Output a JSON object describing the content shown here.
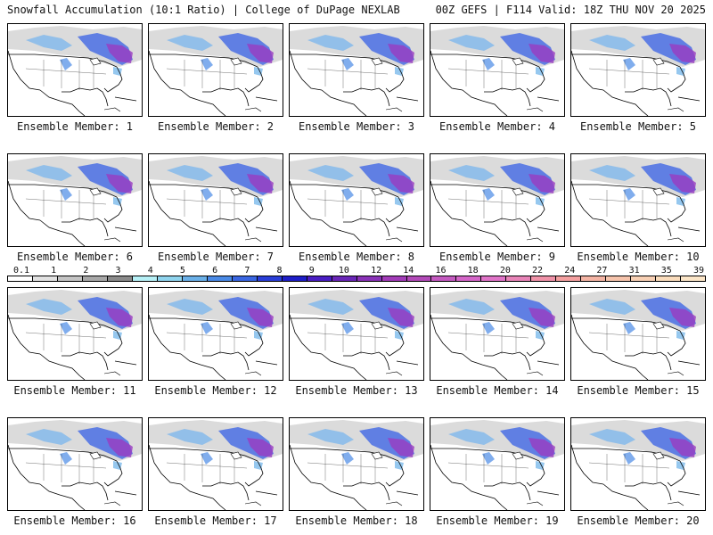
{
  "header": {
    "left": "Snowfall Accumulation (10:1 Ratio) | College of DuPage NEXLAB",
    "right": "00Z GEFS | F114 Valid: 18Z THU NOV 20 2025"
  },
  "caption_prefix": "Ensemble Member:",
  "members": [
    "1",
    "2",
    "3",
    "4",
    "5",
    "6",
    "7",
    "8",
    "9",
    "10",
    "11",
    "12",
    "13",
    "14",
    "15",
    "16",
    "17",
    "18",
    "19",
    "20"
  ],
  "colorbar": {
    "labels": [
      "0.1",
      "1",
      "2",
      "3",
      "4",
      "5",
      "6",
      "7",
      "8",
      "9",
      "10",
      "12",
      "14",
      "16",
      "18",
      "20",
      "22",
      "24",
      "27",
      "31",
      "35",
      "39"
    ],
    "colors": [
      "#ffffff",
      "#e2e2e2",
      "#c4c4c4",
      "#a8a8a8",
      "#8a8a8a",
      "#b6f0f6",
      "#8fd4ee",
      "#6ab0e8",
      "#4a8ae6",
      "#3a66e2",
      "#2a3ed8",
      "#1e1ec8",
      "#4a1ec4",
      "#6a26b8",
      "#8a32b8",
      "#a23cb8",
      "#b24ab8",
      "#c45ac0",
      "#d466c8",
      "#e074c8",
      "#e884b8",
      "#f092a8",
      "#f4a0a0",
      "#f4b4a4",
      "#f6c4ac",
      "#f8d0b4",
      "#fadcbc",
      "#fce6c8"
    ]
  }
}
